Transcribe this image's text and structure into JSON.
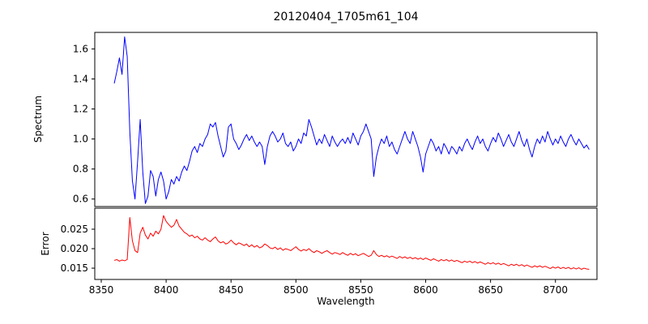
{
  "figure": {
    "background": "#ffffff",
    "axis_color": "#000000"
  },
  "chart_data": [
    {
      "type": "line",
      "title": "20120404_1705m61_104",
      "ylabel": "Spectrum",
      "grid": false,
      "legend": "none",
      "xlim": [
        8345,
        8732
      ],
      "ylim": [
        0.55,
        1.71
      ],
      "y_ticks": [
        0.6,
        0.8,
        1.0,
        1.2,
        1.4,
        1.6
      ],
      "y_tick_labels": [
        "0.6",
        "0.8",
        "1.0",
        "1.2",
        "1.4",
        "1.6"
      ],
      "series": [
        {
          "name": "spectrum",
          "color": "#0000ff",
          "x_start": 8360,
          "x_step": 2,
          "values": [
            1.37,
            1.45,
            1.54,
            1.43,
            1.68,
            1.55,
            1.05,
            0.72,
            0.6,
            0.85,
            1.13,
            0.78,
            0.57,
            0.62,
            0.79,
            0.75,
            0.62,
            0.73,
            0.78,
            0.72,
            0.6,
            0.65,
            0.73,
            0.7,
            0.75,
            0.72,
            0.78,
            0.82,
            0.79,
            0.85,
            0.92,
            0.95,
            0.91,
            0.97,
            0.95,
            1.0,
            1.03,
            1.1,
            1.08,
            1.11,
            1.02,
            0.95,
            0.88,
            0.92,
            1.08,
            1.1,
            1.0,
            0.97,
            0.93,
            0.96,
            1.0,
            1.03,
            0.99,
            1.02,
            0.98,
            0.95,
            0.98,
            0.95,
            0.83,
            0.95,
            1.02,
            1.05,
            1.02,
            0.98,
            1.0,
            1.04,
            0.97,
            0.95,
            0.98,
            0.92,
            0.95,
            1.0,
            0.97,
            1.04,
            1.02,
            1.13,
            1.08,
            1.02,
            0.96,
            1.0,
            0.97,
            1.03,
            0.99,
            0.95,
            1.02,
            0.98,
            0.95,
            0.98,
            1.0,
            0.97,
            1.01,
            0.97,
            1.04,
            1.0,
            0.96,
            1.02,
            1.05,
            1.1,
            1.05,
            1.0,
            0.75,
            0.88,
            0.95,
            1.0,
            0.97,
            1.02,
            0.95,
            0.98,
            0.93,
            0.9,
            0.95,
            1.0,
            1.05,
            1.0,
            0.97,
            1.05,
            1.0,
            0.95,
            0.88,
            0.78,
            0.9,
            0.95,
            1.0,
            0.97,
            0.92,
            0.95,
            0.9,
            0.97,
            0.94,
            0.9,
            0.95,
            0.93,
            0.9,
            0.95,
            0.92,
            0.97,
            1.0,
            0.96,
            0.93,
            0.98,
            1.02,
            0.97,
            1.0,
            0.95,
            0.92,
            0.97,
            1.01,
            0.98,
            1.04,
            1.0,
            0.95,
            0.99,
            1.03,
            0.98,
            0.95,
            1.0,
            1.05,
            0.99,
            0.95,
            1.0,
            0.93,
            0.88,
            0.95,
            1.0,
            0.97,
            1.02,
            0.98,
            1.05,
            1.0,
            0.96,
            1.0,
            0.97,
            1.02,
            0.98,
            0.95,
            1.0,
            1.03,
            0.99,
            0.96,
            1.0,
            0.97,
            0.94,
            0.96,
            0.93
          ]
        }
      ]
    },
    {
      "type": "line",
      "ylabel": "Error",
      "xlabel": "Wavelength",
      "grid": false,
      "legend": "none",
      "xlim": [
        8345,
        8732
      ],
      "ylim": [
        0.0121,
        0.0304
      ],
      "y_ticks": [
        0.015,
        0.02,
        0.025
      ],
      "y_tick_labels": [
        "0.015",
        "0.020",
        "0.025"
      ],
      "x_ticks": [
        8350,
        8400,
        8450,
        8500,
        8550,
        8600,
        8650,
        8700
      ],
      "x_tick_labels": [
        "8350",
        "8400",
        "8450",
        "8500",
        "8550",
        "8600",
        "8650",
        "8700"
      ],
      "series": [
        {
          "name": "error",
          "color": "#ff0000",
          "x_start": 8360,
          "x_step": 2,
          "values": [
            0.017,
            0.0172,
            0.0168,
            0.0171,
            0.0169,
            0.0172,
            0.028,
            0.022,
            0.0195,
            0.019,
            0.024,
            0.0255,
            0.0235,
            0.0225,
            0.024,
            0.0232,
            0.0245,
            0.0238,
            0.025,
            0.0285,
            0.027,
            0.0262,
            0.0255,
            0.026,
            0.0275,
            0.0258,
            0.025,
            0.0242,
            0.0238,
            0.0232,
            0.0235,
            0.0228,
            0.0232,
            0.0225,
            0.0222,
            0.0228,
            0.0222,
            0.0218,
            0.0225,
            0.023,
            0.022,
            0.0215,
            0.0218,
            0.0212,
            0.0215,
            0.0222,
            0.0215,
            0.021,
            0.0215,
            0.0212,
            0.0208,
            0.0212,
            0.0205,
            0.021,
            0.0204,
            0.0208,
            0.0202,
            0.0205,
            0.0212,
            0.0208,
            0.0202,
            0.02,
            0.0204,
            0.0198,
            0.0202,
            0.0196,
            0.02,
            0.0198,
            0.0195,
            0.02,
            0.0205,
            0.0198,
            0.0194,
            0.0198,
            0.0195,
            0.02,
            0.0194,
            0.019,
            0.0195,
            0.0192,
            0.0188,
            0.0192,
            0.0195,
            0.019,
            0.0186,
            0.019,
            0.0188,
            0.0185,
            0.019,
            0.0186,
            0.0183,
            0.0188,
            0.0184,
            0.0187,
            0.0182,
            0.0185,
            0.0188,
            0.0184,
            0.018,
            0.0183,
            0.0195,
            0.0185,
            0.018,
            0.0183,
            0.0179,
            0.0182,
            0.0178,
            0.0181,
            0.0178,
            0.0175,
            0.018,
            0.0176,
            0.0179,
            0.0175,
            0.0178,
            0.0174,
            0.0177,
            0.0173,
            0.0176,
            0.0172,
            0.0176,
            0.0173,
            0.017,
            0.0174,
            0.0171,
            0.0168,
            0.0172,
            0.0169,
            0.0172,
            0.0168,
            0.0171,
            0.0167,
            0.017,
            0.0167,
            0.0164,
            0.0168,
            0.0165,
            0.0168,
            0.0164,
            0.0167,
            0.0163,
            0.0166,
            0.0163,
            0.016,
            0.0164,
            0.0161,
            0.0164,
            0.016,
            0.0163,
            0.0159,
            0.0162,
            0.0159,
            0.0156,
            0.016,
            0.0157,
            0.016,
            0.0156,
            0.0159,
            0.0155,
            0.0158,
            0.0155,
            0.0152,
            0.0156,
            0.0153,
            0.0156,
            0.0152,
            0.0155,
            0.0152,
            0.0149,
            0.0153,
            0.015,
            0.0153,
            0.0149,
            0.0152,
            0.0149,
            0.0152,
            0.0148,
            0.0151,
            0.0148,
            0.0151,
            0.0147,
            0.015,
            0.0148,
            0.0147
          ]
        }
      ]
    }
  ]
}
